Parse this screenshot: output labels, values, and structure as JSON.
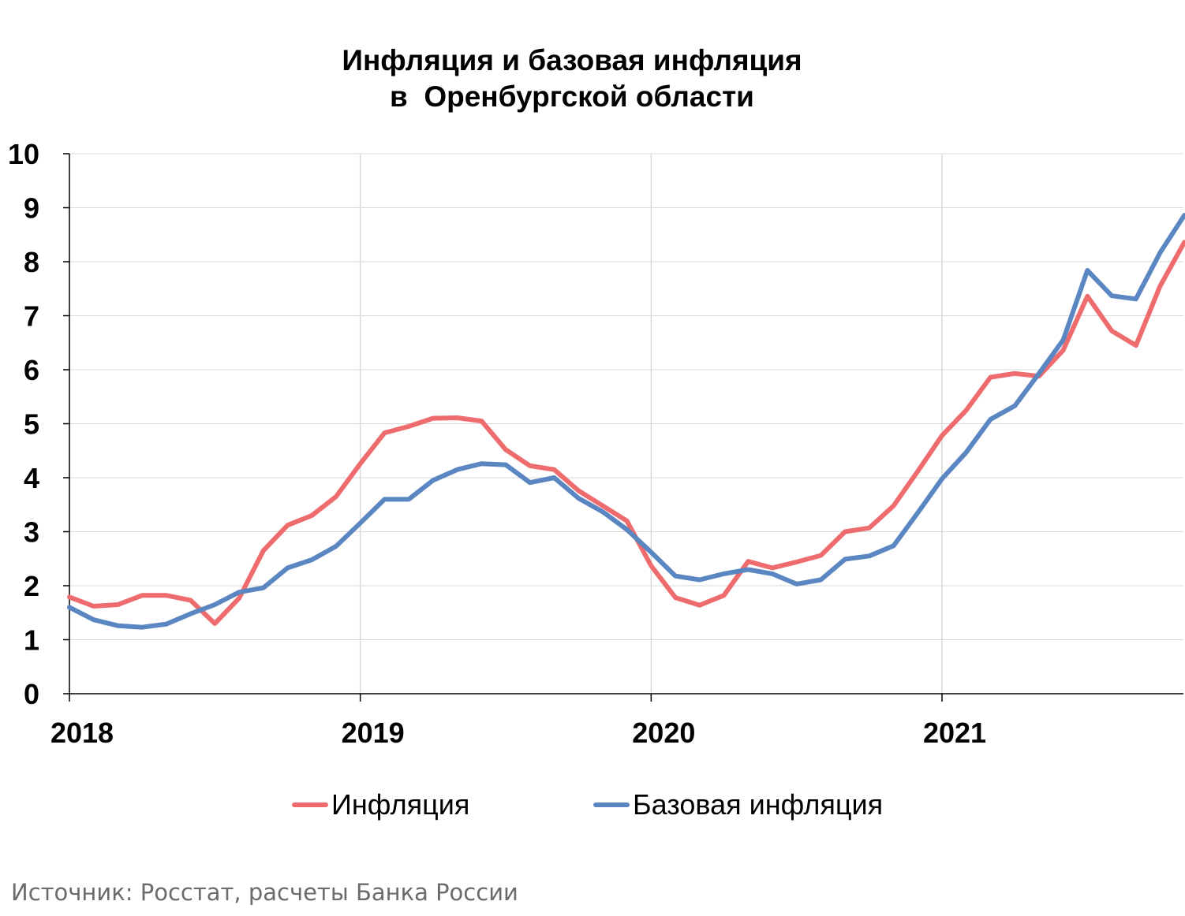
{
  "title_lines": [
    "Инфляция и базовая инфляция",
    "в  Оренбургской области"
  ],
  "source": "Источник: Росстат, расчеты Банка России",
  "chart_data": {
    "type": "line",
    "title": "Инфляция и базовая инфляция в  Оренбургской области",
    "xlabel": "",
    "ylabel": "",
    "ylim": [
      0,
      10
    ],
    "yticks": [
      "0",
      "1",
      "2",
      "3",
      "4",
      "5",
      "6",
      "7",
      "8",
      "9",
      "10"
    ],
    "xticks": [
      "2018",
      "2019",
      "2020",
      "2021"
    ],
    "grid": true,
    "legend_position": "bottom",
    "x_start": "2018-01",
    "x_frequency": "monthly",
    "series": [
      {
        "name": "Инфляция",
        "color": "#ee6b6e",
        "values": [
          1.79,
          1.62,
          1.65,
          1.82,
          1.82,
          1.73,
          1.3,
          1.77,
          2.65,
          3.12,
          3.3,
          3.65,
          4.26,
          4.83,
          4.95,
          5.1,
          5.11,
          5.05,
          4.52,
          4.22,
          4.15,
          3.76,
          3.48,
          3.2,
          2.37,
          1.78,
          1.64,
          1.82,
          2.45,
          2.33,
          2.44,
          2.56,
          3.0,
          3.07,
          3.48,
          4.12,
          4.78,
          5.25,
          5.86,
          5.93,
          5.88,
          6.36,
          7.36,
          6.72,
          6.45,
          7.55,
          8.36
        ]
      },
      {
        "name": "Базовая инфляция",
        "color": "#5a86c2",
        "values": [
          1.6,
          1.37,
          1.26,
          1.23,
          1.29,
          1.48,
          1.65,
          1.88,
          1.96,
          2.33,
          2.48,
          2.73,
          3.16,
          3.6,
          3.6,
          3.95,
          4.15,
          4.26,
          4.24,
          3.91,
          4.0,
          3.62,
          3.37,
          3.04,
          2.62,
          2.18,
          2.11,
          2.22,
          2.3,
          2.22,
          2.03,
          2.11,
          2.49,
          2.55,
          2.74,
          3.35,
          3.98,
          4.47,
          5.08,
          5.33,
          5.93,
          6.55,
          7.84,
          7.37,
          7.31,
          8.17,
          8.86
        ]
      }
    ]
  }
}
